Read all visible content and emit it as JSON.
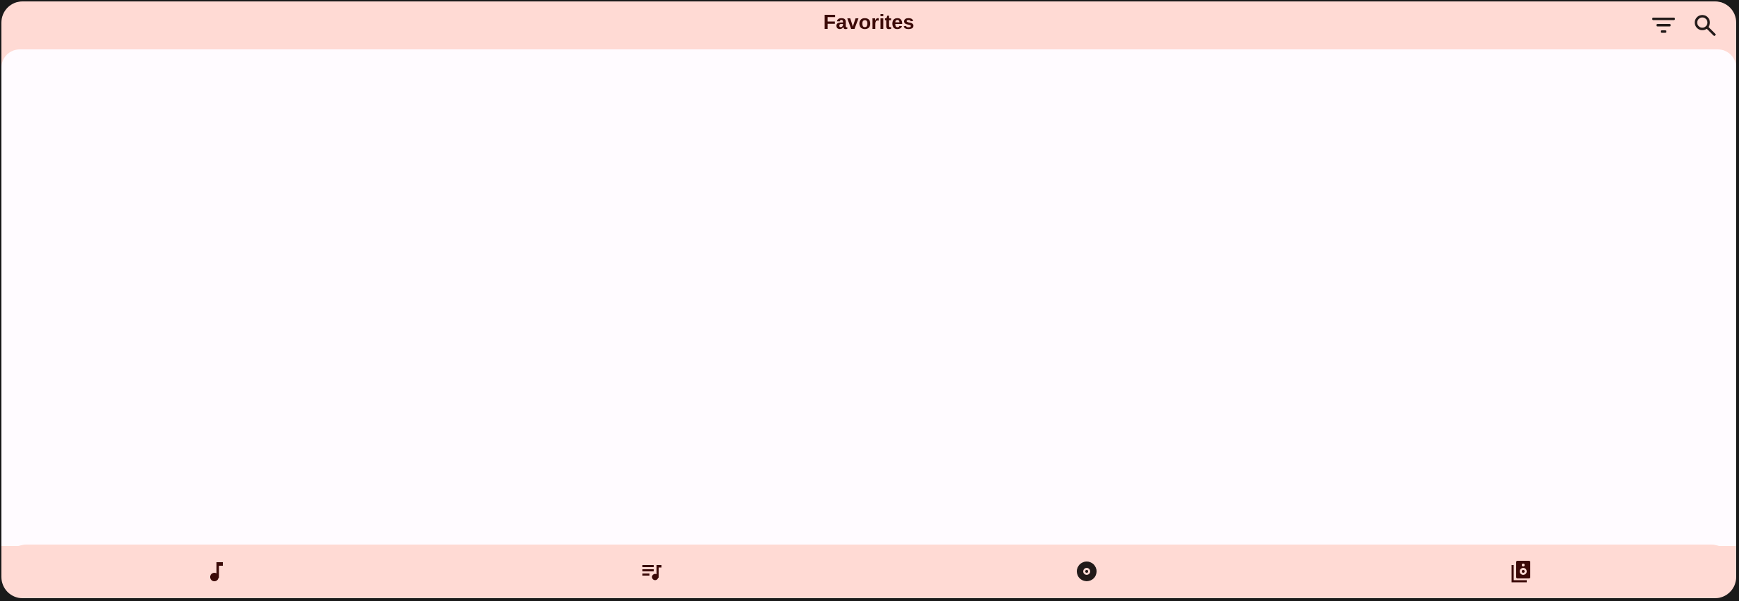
{
  "header": {
    "title": "Favorites",
    "icons": [
      "filter-icon",
      "search-icon"
    ]
  },
  "nav": {
    "items": [
      {
        "icon": "music-note-icon"
      },
      {
        "icon": "queue-music-icon"
      },
      {
        "icon": "album-icon"
      },
      {
        "icon": "library-speaker-icon"
      }
    ]
  },
  "colors": {
    "surface": "#ffdad4",
    "background": "#fffbff",
    "on_surface": "#3b0907"
  }
}
